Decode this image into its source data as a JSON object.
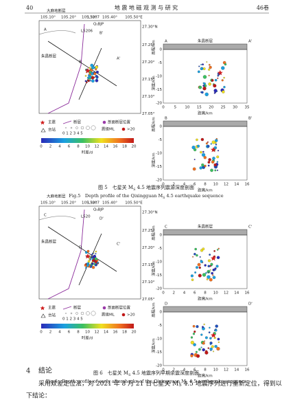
{
  "header": {
    "page": "40",
    "journal": "地 震 地 磁 观 测 与 研 究",
    "volume": "46卷"
  },
  "figures": [
    {
      "map": {
        "lon_labels": [
          "105.10°",
          "105.20°",
          "105.30°",
          "105.40°",
          "105.50°E"
        ],
        "lat_labels": [
          "27.30°N",
          "27.25°",
          "27.20°",
          "27.15°",
          "27.10°",
          "27.05°"
        ],
        "labels": [
          "大麻地断层",
          "L5207",
          "Q₁BJP",
          "L5206",
          "朱昌断层",
          "A",
          "A'",
          "B",
          "B'"
        ]
      },
      "legend": {
        "mainshock": "主震",
        "fault": "断层",
        "section_fault": "剖面断层位置",
        "station": "台站",
        "mag_ticks": "0 1 2 3 4 5",
        "mag_label": "震级ML",
        "over": ">20",
        "color_ticks": [
          "0",
          "2",
          "4",
          "6",
          "8",
          "10",
          "12",
          "14",
          "16",
          "18",
          "20"
        ],
        "color_label": "时差/d"
      },
      "profiles": [
        {
          "start": "A",
          "end": "A'",
          "fault": "朱昌断层",
          "elev": "高程/km",
          "depth": "深度/km",
          "dist": "距离/km",
          "xticks": [
            "0",
            "5",
            "10",
            "15",
            "20",
            "25",
            "30",
            "35"
          ],
          "yticks": [
            "0",
            "-5",
            "-10",
            "-15",
            "-20"
          ]
        },
        {
          "start": "B",
          "end": "B'",
          "elev": "高程/km",
          "depth": "深度/km",
          "dist": "距离/km",
          "xticks": [
            "0",
            "2",
            "4",
            "6",
            "8",
            "10",
            "12",
            "14",
            "16"
          ],
          "yticks": [
            "0",
            "-5",
            "-10",
            "-15",
            "-20"
          ]
        }
      ],
      "caption_cn": [
        "图 5　七星关 M",
        "S",
        " 4.5 地震序列震源深度剖面"
      ],
      "caption_en": [
        "Fig.5　Depth profile of the Qixingguan M",
        "S",
        " 4.5 earthquake sequence"
      ]
    },
    {
      "map": {
        "lon_labels": [
          "105.10°",
          "105.20°",
          "105.30°",
          "105.40°",
          "105.50°E"
        ],
        "lat_labels": [
          "27.30°N",
          "27.25°",
          "27.20°",
          "27.15°",
          "27.10°",
          "27.05°"
        ],
        "labels": [
          "大麻地断层",
          "L5207",
          "Q₁BJP",
          "L520",
          "朱昌断层",
          "C",
          "C'",
          "D",
          "D'"
        ]
      },
      "legend": {
        "mainshock": "主震",
        "fault": "断层",
        "section_fault": "剖面断层位置",
        "station": "台站",
        "mag_ticks": "0 1 2 3 4 5",
        "mag_label": "震级ML",
        "over": ">20",
        "color_ticks": [
          "0",
          "2",
          "4",
          "6",
          "8",
          "10",
          "12",
          "14",
          "16",
          "18",
          "20"
        ],
        "color_label": "时差/d"
      },
      "profiles": [
        {
          "start": "C",
          "end": "C'",
          "fault": "朱昌断层",
          "elev": "高程/km",
          "depth": "深度/km",
          "dist": "距离/km",
          "xticks": [
            "0",
            "2",
            "4",
            "6",
            "8",
            "10",
            "12",
            "14",
            "16"
          ],
          "yticks": [
            "0",
            "-5",
            "-10",
            "-15",
            "-20"
          ]
        },
        {
          "start": "D",
          "end": "D'",
          "elev": "高程/km",
          "depth": "深度/km",
          "dist": "距离/km",
          "xticks": [
            "0",
            "2",
            "4",
            "6",
            "8",
            "10",
            "12",
            "14",
            "16"
          ],
          "yticks": [
            "0",
            "-5",
            "-10",
            "-15",
            "-20"
          ]
        }
      ],
      "caption_cn": [
        "图 6　七星关 M",
        "S",
        " 4.5 地震序列早期余震深度剖面"
      ],
      "caption_en": [
        "Fig.6　Depth profile of early aftershocks of the Qixingguan M",
        "S",
        " 4.5 earthquake sequence"
      ]
    }
  ],
  "section": {
    "number": "4",
    "title": "结论"
  },
  "body": {
    "line1": [
      "采用双差定位法，对 2021 年 8 月 21 日七星关 M",
      "S",
      " 4.5 地震序列进行重新定位，得到以"
    ],
    "line2": "下结论："
  }
}
